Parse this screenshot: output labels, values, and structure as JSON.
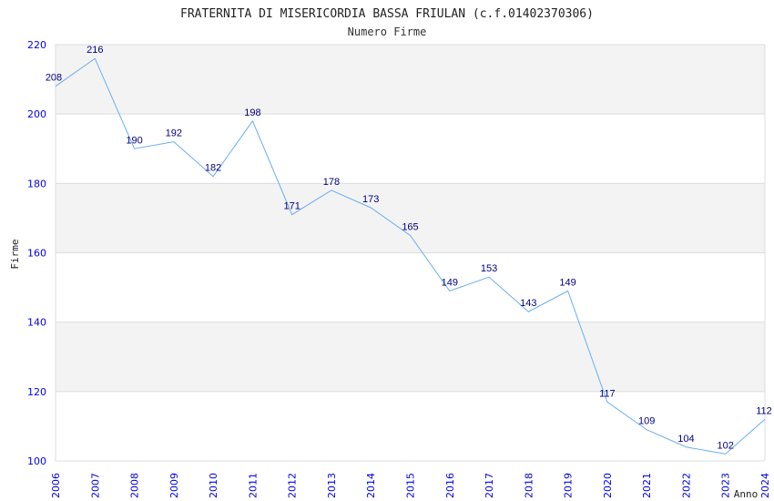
{
  "chart_data": {
    "type": "line",
    "title": "FRATERNITA DI MISERICORDIA BASSA FRIULAN (c.f.01402370306)",
    "subtitle": "Numero Firme",
    "xlabel": "Anno",
    "ylabel": "Firme",
    "x": [
      "2006",
      "2007",
      "2008",
      "2009",
      "2010",
      "2011",
      "2012",
      "2013",
      "2014",
      "2015",
      "2016",
      "2017",
      "2018",
      "2019",
      "2020",
      "2021",
      "2022",
      "2023",
      "2024"
    ],
    "values": [
      208,
      216,
      190,
      192,
      182,
      198,
      171,
      178,
      173,
      165,
      149,
      153,
      143,
      149,
      117,
      109,
      104,
      102,
      112
    ],
    "ylim": [
      100,
      220
    ],
    "yticks": [
      100,
      120,
      140,
      160,
      180,
      200,
      220
    ],
    "grid": true,
    "colors": {
      "line": "#6aaef0",
      "band": "#f3f3f3",
      "tick": "#0000ee",
      "label": "#000080"
    }
  }
}
